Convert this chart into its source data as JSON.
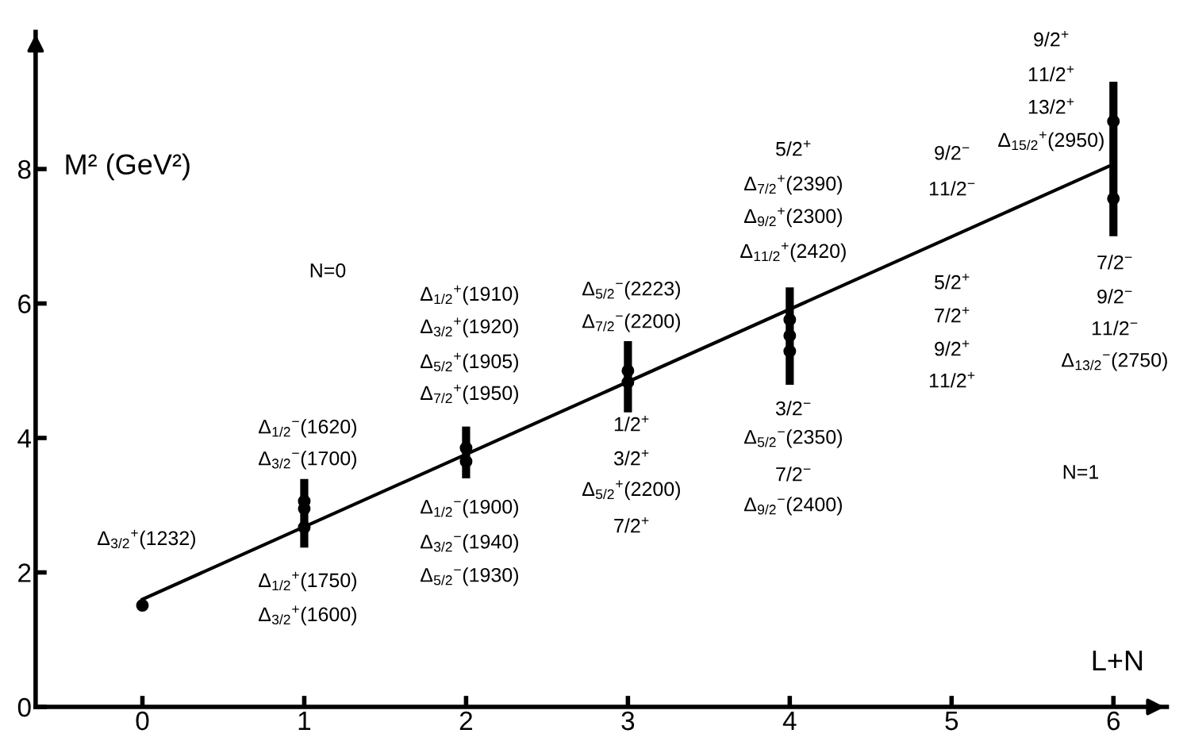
{
  "chart_data": {
    "type": "scatter",
    "xlabel": "L+N",
    "ylabel": "M² (GeV²)",
    "xlim": [
      -0.66,
      6.33
    ],
    "ylim": [
      0,
      10.04
    ],
    "xticks": [
      0,
      1,
      2,
      3,
      4,
      5,
      6
    ],
    "yticks": [
      0,
      2,
      4,
      6,
      8
    ],
    "grid": false,
    "legend": false,
    "series": [
      {
        "type": "line",
        "x": [
          0,
          5.97
        ],
        "values": [
          1.6,
          8.04
        ],
        "color": "#000000",
        "line_style": "solid",
        "marker": "none"
      },
      {
        "type": "bar",
        "x": [
          1,
          2,
          3,
          4,
          6
        ],
        "base": [
          2.37,
          3.4,
          4.38,
          4.79,
          7.0
        ],
        "values": [
          1.02,
          0.77,
          1.06,
          1.45,
          2.3
        ],
        "color": "#000000"
      },
      {
        "x": [
          0,
          1,
          1,
          1,
          2,
          2,
          3,
          3,
          4,
          4,
          4,
          6,
          6
        ],
        "values": [
          1.51,
          3.06,
          2.95,
          2.67,
          3.85,
          3.65,
          5.0,
          4.83,
          5.76,
          5.52,
          5.29,
          8.71,
          7.56
        ],
        "color": "#000000",
        "marker": "circle"
      }
    ],
    "annotations": [
      "Δ$_{3/2}$$^{+}$(1232)",
      "Δ$_{1/2}$$^{−}$(1620)",
      "Δ$_{3/2}$$^{−}$(1700)",
      "Δ$_{1/2}$$^{+}$(1750)",
      "Δ$_{3/2}$$^{+}$(1600)",
      "Δ$_{1/2}$$^{+}$(1910)",
      "Δ$_{3/2}$$^{+}$(1920)",
      "Δ$_{5/2}$$^{+}$(1905)",
      "Δ$_{7/2}$$^{+}$(1950)",
      "Δ$_{1/2}$$^{−}$(1900)",
      "Δ$_{3/2}$$^{−}$(1940)",
      "Δ$_{5/2}$$^{−}$(1930)",
      "Δ$_{5/2}$$^{−}$(2223)",
      "Δ$_{7/2}$$^{−}$(2200)",
      "1/2$^{+}$",
      "3/2$^{+}$",
      "Δ$_{5/2}$$^{+}$(2200)",
      "7/2$^{+}$",
      "5/2$^{+}$",
      "Δ$_{7/2}$$^{+}$(2390)",
      "Δ$_{9/2}$$^{+}$(2300)",
      "Δ$_{11/2}$$^{+}$(2420)",
      "3/2$^{−}$",
      "Δ$_{5/2}$$^{−}$(2350)",
      "7/2$^{−}$",
      "Δ$_{9/2}$$^{−}$(2400)",
      "9/2$^{−}$",
      "11/2$^{−}$",
      "5/2$^{+}$",
      "7/2$^{+}$",
      "9/2$^{+}$",
      "11/2$^{+}$",
      "9/2$^{+}$",
      "11/2$^{+}$",
      "13/2$^{+}$",
      "Δ$_{15/2}$$^{+}$(2950)",
      "7/2$^{−}$",
      "9/2$^{−}$",
      "11/2$^{−}$",
      "Δ$_{13/2}$$^{−}$(2750)",
      "N=0",
      "N=1"
    ]
  }
}
